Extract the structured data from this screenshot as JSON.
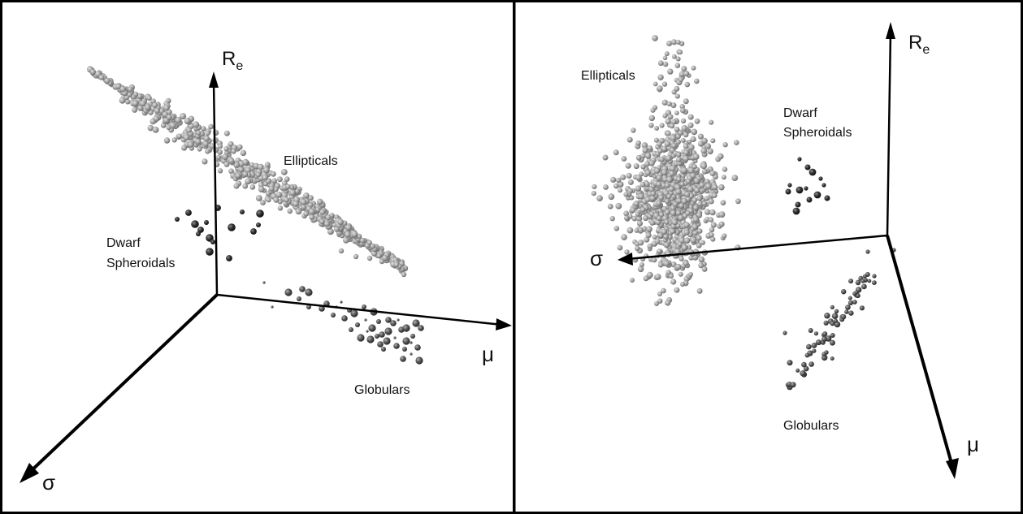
{
  "figure": {
    "panels": [
      {
        "id": "left",
        "axis_labels": {
          "vertical_main": "R",
          "vertical_sub": "e",
          "horizontal": "μ",
          "depth": "σ"
        },
        "group_labels": {
          "ellipticals": "Ellipticals",
          "dwarf_line1": "Dwarf",
          "dwarf_line2": "Spheroidals",
          "globulars": "Globulars"
        }
      },
      {
        "id": "right",
        "axis_labels": {
          "vertical_main": "R",
          "vertical_sub": "e",
          "horizontal": "σ",
          "depth": "μ"
        },
        "group_labels": {
          "ellipticals": "Ellipticals",
          "dwarf_line1": "Dwarf",
          "dwarf_line2": "Spheroidals",
          "globulars": "Globulars"
        }
      }
    ]
  },
  "chart_data": [
    {
      "type": "scatter",
      "view": "3D scatter, oblique view",
      "axes": [
        "μ",
        "σ",
        "R_e"
      ],
      "grid": false,
      "legend": "none",
      "series": [
        {
          "name": "Ellipticals",
          "color": "#9a9a9a",
          "description_points": "dense elongated band"
        },
        {
          "name": "Dwarf Spheroidals",
          "color": "#2b2b2b"
        },
        {
          "name": "Globulars",
          "color": "#555555"
        }
      ]
    },
    {
      "type": "scatter",
      "view": "3D scatter, edge-on view",
      "axes": [
        "σ",
        "μ",
        "R_e"
      ],
      "grid": false,
      "legend": "none",
      "series": [
        {
          "name": "Ellipticals",
          "color": "#9a9a9a"
        },
        {
          "name": "Dwarf Spheroidals",
          "color": "#2b2b2b"
        },
        {
          "name": "Globulars",
          "color": "#555555"
        }
      ]
    }
  ]
}
